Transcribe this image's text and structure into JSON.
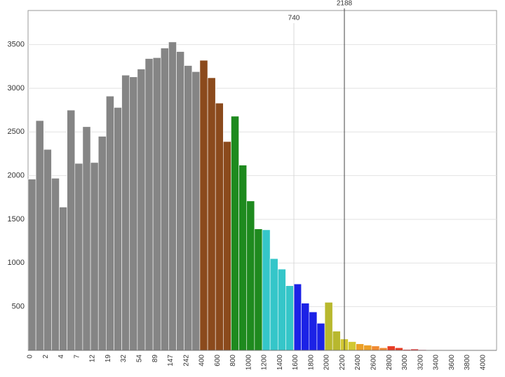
{
  "chart_data": {
    "type": "bar",
    "categories": [
      "0",
      null,
      "2",
      null,
      "4",
      null,
      "7",
      null,
      "12",
      null,
      "19",
      null,
      "32",
      null,
      "54",
      null,
      "89",
      null,
      "147",
      null,
      "242",
      null,
      "400",
      null,
      "600",
      null,
      "800",
      null,
      "1000",
      null,
      "1200",
      null,
      "1400",
      null,
      "1600",
      null,
      "1800",
      null,
      "2000",
      null,
      "2200",
      null,
      "2400",
      null,
      "2600",
      null,
      "2800",
      null,
      "3000",
      null,
      "3200",
      null,
      "3400",
      null,
      "3600",
      null,
      "3800",
      null,
      "4000",
      null
    ],
    "values": [
      1960,
      2630,
      2300,
      1970,
      1640,
      2750,
      2140,
      2560,
      2150,
      2450,
      2910,
      2780,
      3150,
      3130,
      3220,
      3340,
      3350,
      3460,
      3530,
      3420,
      3260,
      3190,
      3320,
      3120,
      2830,
      2390,
      2680,
      2120,
      1710,
      1390,
      1380,
      1050,
      930,
      740,
      760,
      540,
      440,
      310,
      550,
      220,
      130,
      100,
      75,
      60,
      50,
      30,
      50,
      30,
      10,
      15,
      8,
      5,
      5,
      4,
      3,
      3,
      2,
      2,
      2,
      2
    ],
    "colors": [
      "#858585",
      "#858585",
      "#858585",
      "#858585",
      "#858585",
      "#858585",
      "#858585",
      "#858585",
      "#858585",
      "#858585",
      "#858585",
      "#858585",
      "#858585",
      "#858585",
      "#858585",
      "#858585",
      "#858585",
      "#858585",
      "#858585",
      "#858585",
      "#858585",
      "#858585",
      "#8b4a1c",
      "#8b4a1c",
      "#8b4a1c",
      "#8b4a1c",
      "#1e8a1e",
      "#1e8a1e",
      "#1e8a1e",
      "#1e8a1e",
      "#35c6c9",
      "#35c6c9",
      "#35c6c9",
      "#35c6c9",
      "#1c22e6",
      "#1c22e6",
      "#1c22e6",
      "#1c22e6",
      "#b8b82e",
      "#b8b82e",
      "#d2c832",
      "#d2c832",
      "#eca028",
      "#eca028",
      "#f08a32",
      "#f08a32",
      "#e83c24",
      "#e83c24",
      "#e02828",
      "#e02828",
      "#d84060",
      "#d84060",
      "#d84060",
      "#d84060",
      "#d84060",
      "#d84060",
      "#d84060",
      "#d84060",
      "#d84060",
      "#d84060"
    ],
    "ylim": [
      0,
      3890
    ],
    "yticks": [
      500,
      1000,
      1500,
      2000,
      2500,
      3000,
      3500
    ],
    "grid": true,
    "annotations": [
      {
        "text": "740",
        "color": "#2ab5c5",
        "line_color": "#d8d8d8"
      },
      {
        "text": "2188",
        "color": "#a8b82a",
        "line_color": "#444444"
      }
    ]
  }
}
